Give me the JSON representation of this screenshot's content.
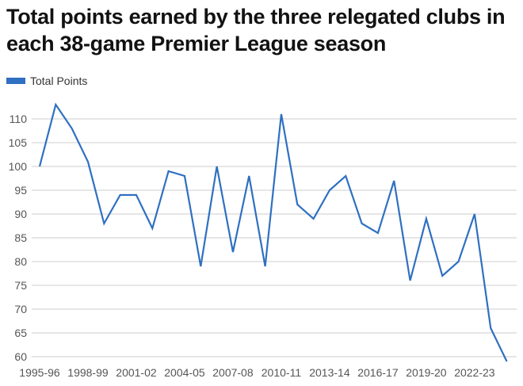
{
  "title": "Total points earned by the three relegated clubs in each 38-game Premier League season",
  "chart_data": {
    "type": "line",
    "title": "Total points earned by the three relegated clubs in each 38-game Premier League season",
    "xlabel": "",
    "ylabel": "",
    "ylim": [
      60,
      110
    ],
    "yticks": [
      60,
      65,
      70,
      75,
      80,
      85,
      90,
      95,
      100,
      105,
      110
    ],
    "grid": true,
    "legend_position": "top-left",
    "x": [
      "1995-96",
      "1996-97",
      "1997-98",
      "1998-99",
      "1999-00",
      "2000-01",
      "2001-02",
      "2002-03",
      "2003-04",
      "2004-05",
      "2005-06",
      "2006-07",
      "2007-08",
      "2008-09",
      "2009-10",
      "2010-11",
      "2011-12",
      "2012-13",
      "2013-14",
      "2014-15",
      "2015-16",
      "2016-17",
      "2017-18",
      "2018-19",
      "2019-20",
      "2020-21",
      "2021-22",
      "2022-23",
      "2023-24",
      "2024-25"
    ],
    "xtick_labels": [
      "1995-96",
      "1998-99",
      "2001-02",
      "2004-05",
      "2007-08",
      "2010-11",
      "2013-14",
      "2016-17",
      "2019-20",
      "2022-23"
    ],
    "series": [
      {
        "name": "Total Points",
        "color": "#2f70c1",
        "values": [
          100,
          113,
          108,
          101,
          88,
          94,
          94,
          87,
          99,
          98,
          79,
          100,
          82,
          98,
          79,
          111,
          92,
          89,
          95,
          98,
          88,
          86,
          97,
          76,
          89,
          77,
          80,
          90,
          66,
          59
        ]
      }
    ]
  }
}
